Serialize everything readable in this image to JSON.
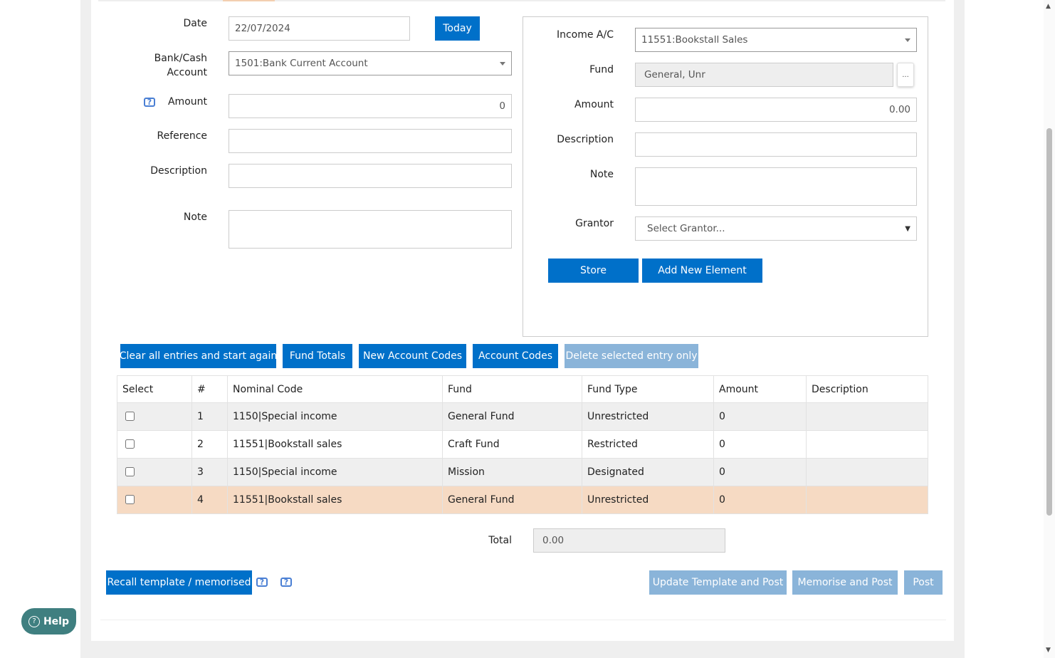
{
  "left_form": {
    "date_label": "Date",
    "date_value": "22/07/2024",
    "today_button": "Today",
    "bank_label": "Bank/Cash Account",
    "bank_value": "1501:Bank Current Account",
    "amount_label": "Amount",
    "amount_value": "0",
    "reference_label": "Reference",
    "description_label": "Description",
    "note_label": "Note"
  },
  "right_form": {
    "income_label": "Income A/C",
    "income_value": "11551:Bookstall Sales",
    "fund_label": "Fund",
    "fund_value": "General, Unr",
    "fund_button": "...",
    "amount_label": "Amount",
    "amount_value": "0.00",
    "description_label": "Description",
    "note_label": "Note",
    "grantor_label": "Grantor",
    "grantor_value": "Select Grantor...",
    "store_button": "Store",
    "add_button": "Add New Element"
  },
  "actions": [
    "Clear all entries and start again",
    "Fund Totals",
    "New Account Codes",
    "Account Codes",
    "Delete selected entry only"
  ],
  "table": {
    "headers": [
      "Select",
      "#",
      "Nominal Code",
      "Fund",
      "Fund Type",
      "Amount",
      "Description"
    ],
    "rows": [
      [
        "1",
        "1150|Special income",
        "General Fund",
        "Unrestricted",
        "0",
        ""
      ],
      [
        "2",
        "11551|Bookstall sales",
        "Craft Fund",
        "Restricted",
        "0",
        ""
      ],
      [
        "3",
        "1150|Special income",
        "Mission",
        "Designated",
        "0",
        ""
      ],
      [
        "4",
        "11551|Bookstall sales",
        "General Fund",
        "Unrestricted",
        "0",
        ""
      ]
    ]
  },
  "total": {
    "label": "Total",
    "value": "0.00"
  },
  "footer": {
    "recall": "Recall template / memorised",
    "update": "Update Template and Post",
    "memorise": "Memorise and Post",
    "post": "Post"
  },
  "help": "Help",
  "icon_text": "?",
  "colors": {
    "primary": "#0070c9",
    "disabled": "#8ab4d9",
    "highlight_row": "#f6dac3",
    "help": "#3f7f80"
  }
}
